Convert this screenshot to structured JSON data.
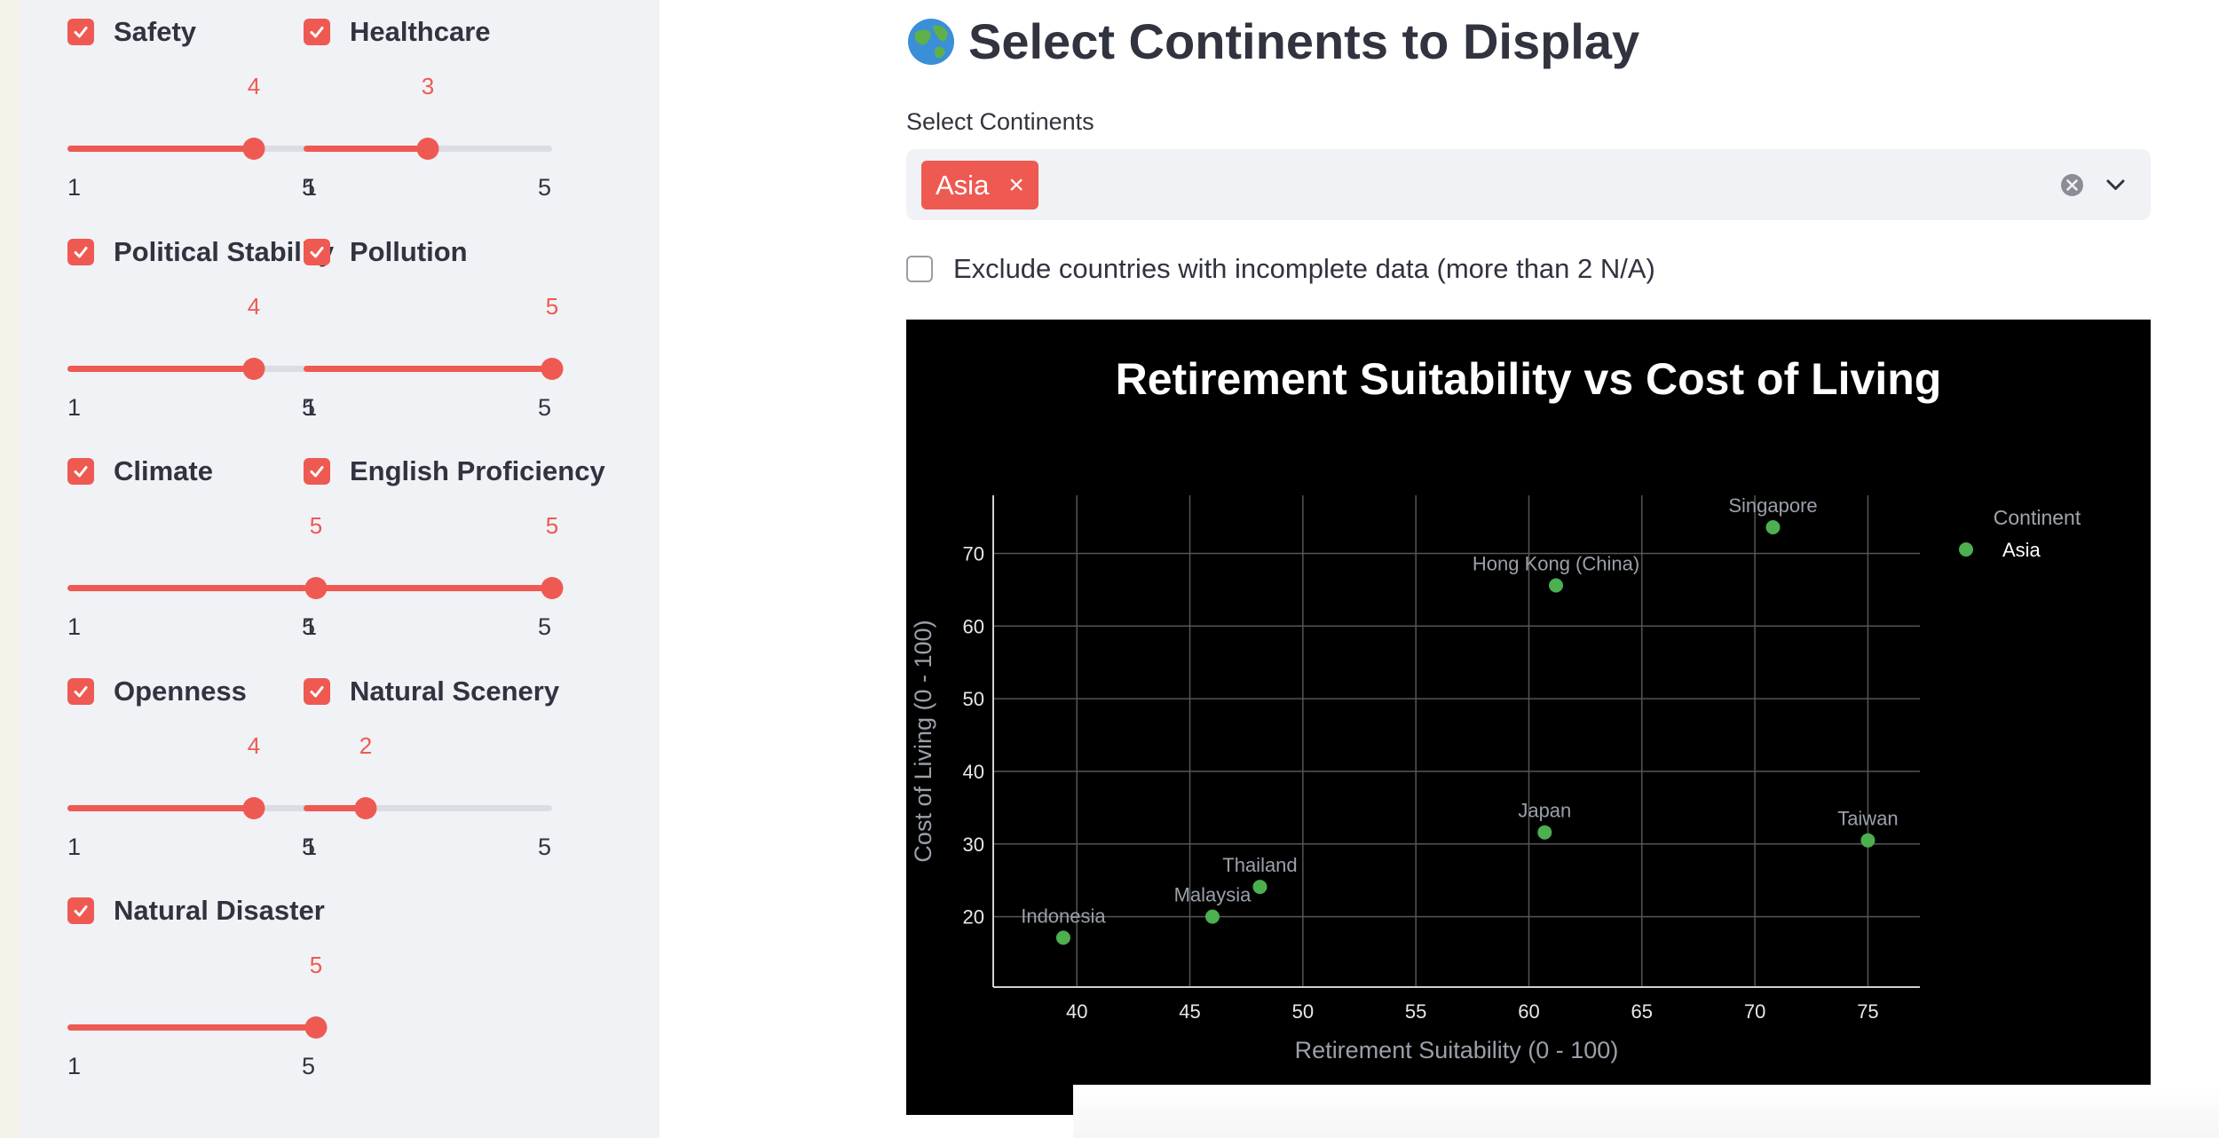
{
  "sidebar": {
    "filters": [
      {
        "label": "Safety",
        "value": 4,
        "min": "1",
        "max": "5"
      },
      {
        "label": "Healthcare",
        "value": 3,
        "min": "1",
        "max": "5"
      },
      {
        "label": "Political Stability",
        "value": 4,
        "min": "1",
        "max": "5"
      },
      {
        "label": "Pollution",
        "value": 5,
        "min": "1",
        "max": "5"
      },
      {
        "label": "Climate",
        "value": 5,
        "min": "1",
        "max": "5"
      },
      {
        "label": "English Proficiency",
        "value": 5,
        "min": "1",
        "max": "5"
      },
      {
        "label": "Openness",
        "value": 4,
        "min": "1",
        "max": "5"
      },
      {
        "label": "Natural Scenery",
        "value": 2,
        "min": "1",
        "max": "5"
      },
      {
        "label": "Natural Disaster",
        "value": 5,
        "min": "1",
        "max": "5"
      }
    ]
  },
  "main": {
    "heading": "Select Continents to Display",
    "heading_icon": "globe-icon",
    "select_label": "Select Continents",
    "selected_tag": "Asia",
    "tag_remove": "×",
    "exclude_label": "Exclude countries with incomplete data (more than 2 N/A)"
  },
  "colors": {
    "accent": "#ee5a52",
    "point": "#4caf50",
    "chart_bg": "#000000"
  },
  "chart_data": {
    "type": "scatter",
    "title": "Retirement Suitability vs Cost of Living",
    "xlabel": "Retirement Suitability (0 - 100)",
    "ylabel": "Cost of Living (0 - 100)",
    "xlim": [
      36.3,
      77.3
    ],
    "ylim": [
      10.3,
      78
    ],
    "xticks": [
      40,
      45,
      50,
      55,
      60,
      65,
      70,
      75
    ],
    "yticks": [
      20,
      30,
      40,
      50,
      60,
      70
    ],
    "grid": true,
    "legend_title": "Continent",
    "legend_position": "top-right",
    "series": [
      {
        "name": "Asia",
        "points": [
          {
            "label": "Indonesia",
            "x": 39.4,
            "y": 17.1
          },
          {
            "label": "Malaysia",
            "x": 46.0,
            "y": 20.0
          },
          {
            "label": "Thailand",
            "x": 48.1,
            "y": 24.1
          },
          {
            "label": "Japan",
            "x": 60.7,
            "y": 31.6
          },
          {
            "label": "Hong Kong (China)",
            "x": 61.2,
            "y": 65.6
          },
          {
            "label": "Singapore",
            "x": 70.8,
            "y": 73.6
          },
          {
            "label": "Taiwan",
            "x": 75.0,
            "y": 30.5
          }
        ]
      }
    ]
  }
}
